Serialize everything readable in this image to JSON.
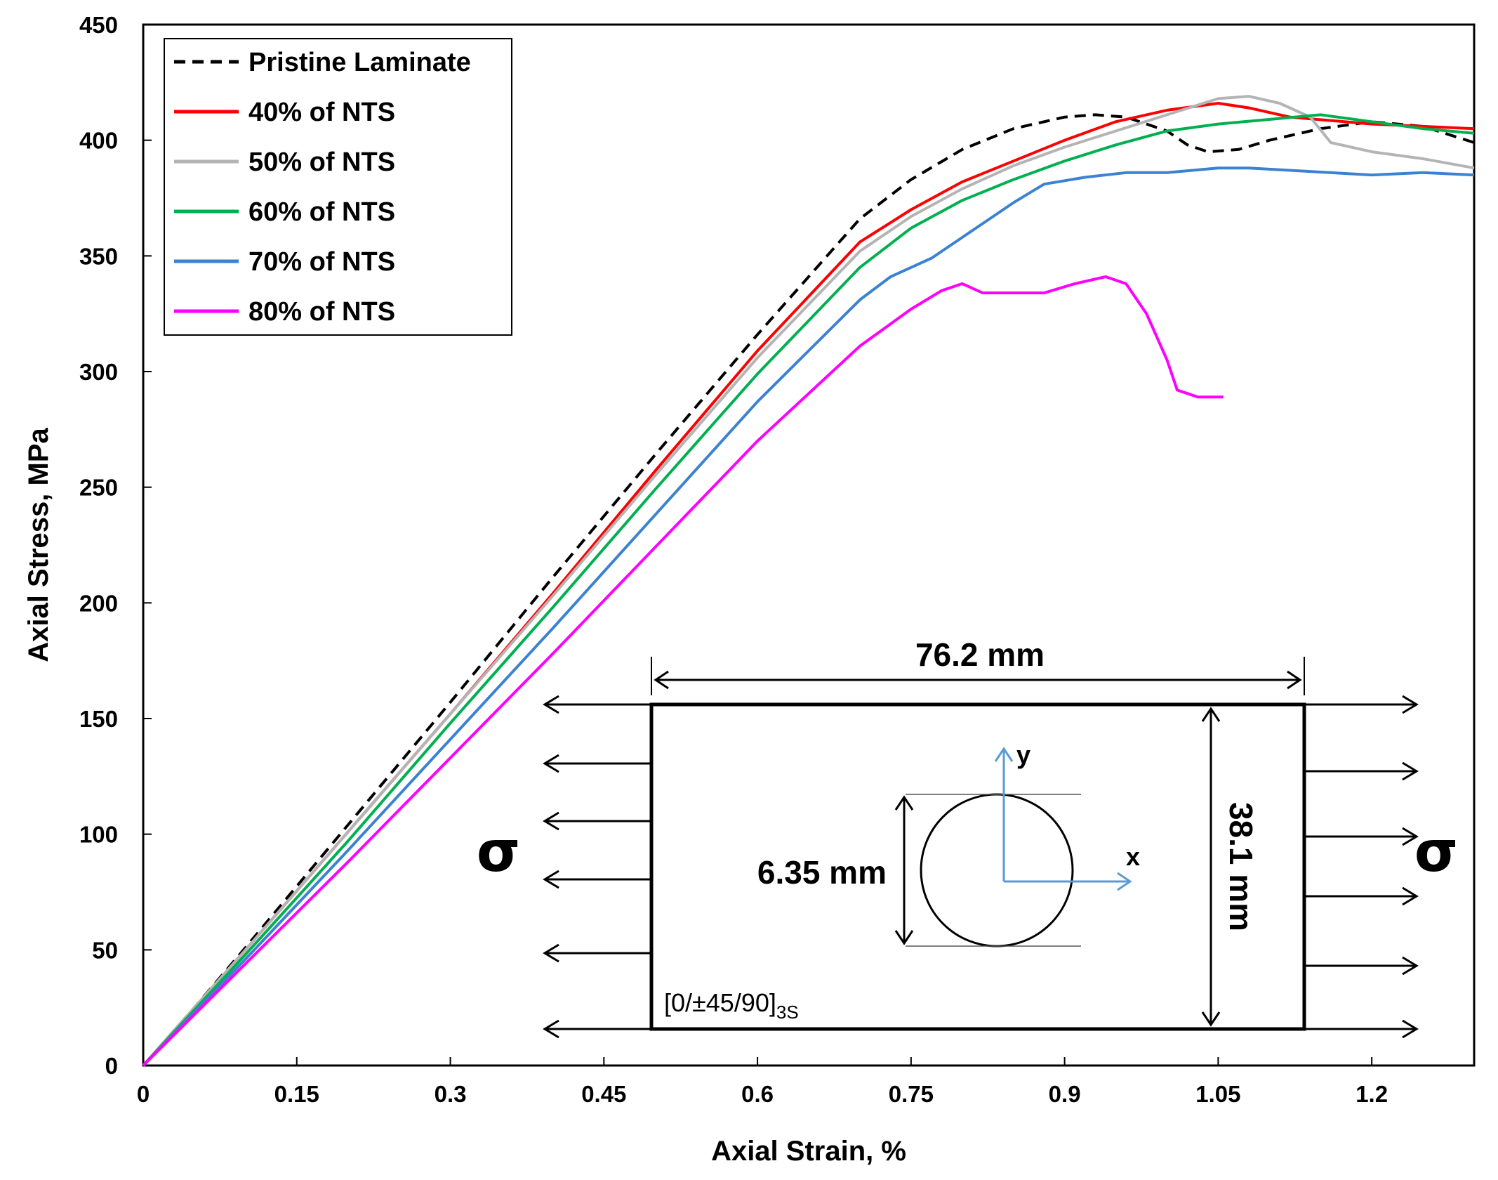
{
  "chart_data": {
    "type": "line",
    "xlabel": "Axial Strain, %",
    "ylabel": "Axial Stress, MPa",
    "xlim": [
      0,
      1.3
    ],
    "ylim": [
      0,
      450
    ],
    "x_ticks": [
      0,
      0.15,
      0.3,
      0.45,
      0.6,
      0.75,
      0.9,
      1.05,
      1.2
    ],
    "x_tick_labels": [
      "0",
      "0.15",
      "0.3",
      "0.45",
      "0.6",
      "0.75",
      "0.9",
      "1.05",
      "1.2"
    ],
    "y_ticks": [
      0,
      50,
      100,
      150,
      200,
      250,
      300,
      350,
      400,
      450
    ],
    "y_tick_labels": [
      "0",
      "50",
      "100",
      "150",
      "200",
      "250",
      "300",
      "350",
      "400",
      "450"
    ],
    "legend_position": "top-left",
    "grid": false,
    "series": [
      {
        "name": "Pristine Laminate",
        "color": "#000000",
        "dashed": true,
        "points": [
          [
            0,
            0
          ],
          [
            0.05,
            25
          ],
          [
            0.1,
            51
          ],
          [
            0.2,
            104
          ],
          [
            0.3,
            157
          ],
          [
            0.4,
            211
          ],
          [
            0.5,
            264
          ],
          [
            0.6,
            316
          ],
          [
            0.7,
            366
          ],
          [
            0.75,
            383
          ],
          [
            0.8,
            396
          ],
          [
            0.85,
            405
          ],
          [
            0.9,
            410
          ],
          [
            0.93,
            411
          ],
          [
            0.96,
            410
          ],
          [
            1.0,
            404
          ],
          [
            1.02,
            398
          ],
          [
            1.04,
            395
          ],
          [
            1.07,
            396
          ],
          [
            1.1,
            400
          ],
          [
            1.15,
            405
          ],
          [
            1.2,
            408
          ],
          [
            1.25,
            406
          ],
          [
            1.3,
            399
          ]
        ]
      },
      {
        "name": "40% of NTS",
        "color": "#ff0000",
        "dashed": false,
        "points": [
          [
            0,
            0
          ],
          [
            0.05,
            25
          ],
          [
            0.1,
            50
          ],
          [
            0.2,
            101
          ],
          [
            0.3,
            152
          ],
          [
            0.4,
            204
          ],
          [
            0.5,
            257
          ],
          [
            0.6,
            309
          ],
          [
            0.7,
            356
          ],
          [
            0.75,
            370
          ],
          [
            0.8,
            382
          ],
          [
            0.85,
            391
          ],
          [
            0.9,
            400
          ],
          [
            0.95,
            408
          ],
          [
            1.0,
            413
          ],
          [
            1.05,
            416
          ],
          [
            1.08,
            414
          ],
          [
            1.12,
            410
          ],
          [
            1.2,
            407
          ],
          [
            1.25,
            406
          ],
          [
            1.3,
            405
          ]
        ]
      },
      {
        "name": "50% of NTS",
        "color": "#b4b4b4",
        "dashed": false,
        "points": [
          [
            0,
            0
          ],
          [
            0.05,
            25
          ],
          [
            0.1,
            50
          ],
          [
            0.2,
            101
          ],
          [
            0.3,
            152
          ],
          [
            0.4,
            203
          ],
          [
            0.5,
            255
          ],
          [
            0.6,
            306
          ],
          [
            0.7,
            352
          ],
          [
            0.75,
            367
          ],
          [
            0.8,
            379
          ],
          [
            0.85,
            389
          ],
          [
            0.9,
            397
          ],
          [
            0.95,
            404
          ],
          [
            1.0,
            411
          ],
          [
            1.05,
            418
          ],
          [
            1.08,
            419
          ],
          [
            1.11,
            416
          ],
          [
            1.14,
            410
          ],
          [
            1.16,
            399
          ],
          [
            1.2,
            395
          ],
          [
            1.25,
            392
          ],
          [
            1.3,
            388
          ]
        ]
      },
      {
        "name": "60% of NTS",
        "color": "#00b050",
        "dashed": false,
        "points": [
          [
            0,
            0
          ],
          [
            0.05,
            24
          ],
          [
            0.1,
            48
          ],
          [
            0.2,
            97
          ],
          [
            0.3,
            148
          ],
          [
            0.4,
            198
          ],
          [
            0.5,
            249
          ],
          [
            0.6,
            299
          ],
          [
            0.7,
            345
          ],
          [
            0.75,
            362
          ],
          [
            0.8,
            374
          ],
          [
            0.85,
            383
          ],
          [
            0.9,
            391
          ],
          [
            0.95,
            398
          ],
          [
            1.0,
            404
          ],
          [
            1.05,
            407
          ],
          [
            1.1,
            409
          ],
          [
            1.15,
            411
          ],
          [
            1.2,
            408
          ],
          [
            1.25,
            405
          ],
          [
            1.3,
            403
          ]
        ]
      },
      {
        "name": "70% of NTS",
        "color": "#3c82d2",
        "dashed": false,
        "points": [
          [
            0,
            0
          ],
          [
            0.05,
            23
          ],
          [
            0.1,
            46
          ],
          [
            0.2,
            93
          ],
          [
            0.3,
            141
          ],
          [
            0.4,
            189
          ],
          [
            0.5,
            238
          ],
          [
            0.6,
            287
          ],
          [
            0.7,
            331
          ],
          [
            0.73,
            341
          ],
          [
            0.77,
            349
          ],
          [
            0.8,
            358
          ],
          [
            0.85,
            373
          ],
          [
            0.88,
            381
          ],
          [
            0.92,
            384
          ],
          [
            0.96,
            386
          ],
          [
            1.0,
            386
          ],
          [
            1.05,
            388
          ],
          [
            1.08,
            388
          ],
          [
            1.12,
            387
          ],
          [
            1.2,
            385
          ],
          [
            1.25,
            386
          ],
          [
            1.3,
            385
          ]
        ]
      },
      {
        "name": "80% of NTS",
        "color": "#ff00ff",
        "dashed": false,
        "points": [
          [
            0,
            0
          ],
          [
            0.05,
            22
          ],
          [
            0.1,
            44
          ],
          [
            0.2,
            88
          ],
          [
            0.3,
            133
          ],
          [
            0.4,
            178
          ],
          [
            0.5,
            224
          ],
          [
            0.6,
            270
          ],
          [
            0.7,
            311
          ],
          [
            0.75,
            327
          ],
          [
            0.78,
            335
          ],
          [
            0.8,
            338
          ],
          [
            0.82,
            334
          ],
          [
            0.85,
            334
          ],
          [
            0.88,
            334
          ],
          [
            0.91,
            338
          ],
          [
            0.94,
            341
          ],
          [
            0.96,
            338
          ],
          [
            0.98,
            325
          ],
          [
            1.0,
            305
          ],
          [
            1.01,
            292
          ],
          [
            1.03,
            289
          ],
          [
            1.055,
            289
          ]
        ]
      }
    ]
  },
  "inset": {
    "width_label": "76.2 mm",
    "height_label": "38.1 mm",
    "hole_label": "6.35 mm",
    "axis_x": "x",
    "axis_y": "y",
    "stress_left": "σ",
    "stress_right": "σ",
    "layup": "[0/±45/90]",
    "layup_sub": "3S"
  }
}
